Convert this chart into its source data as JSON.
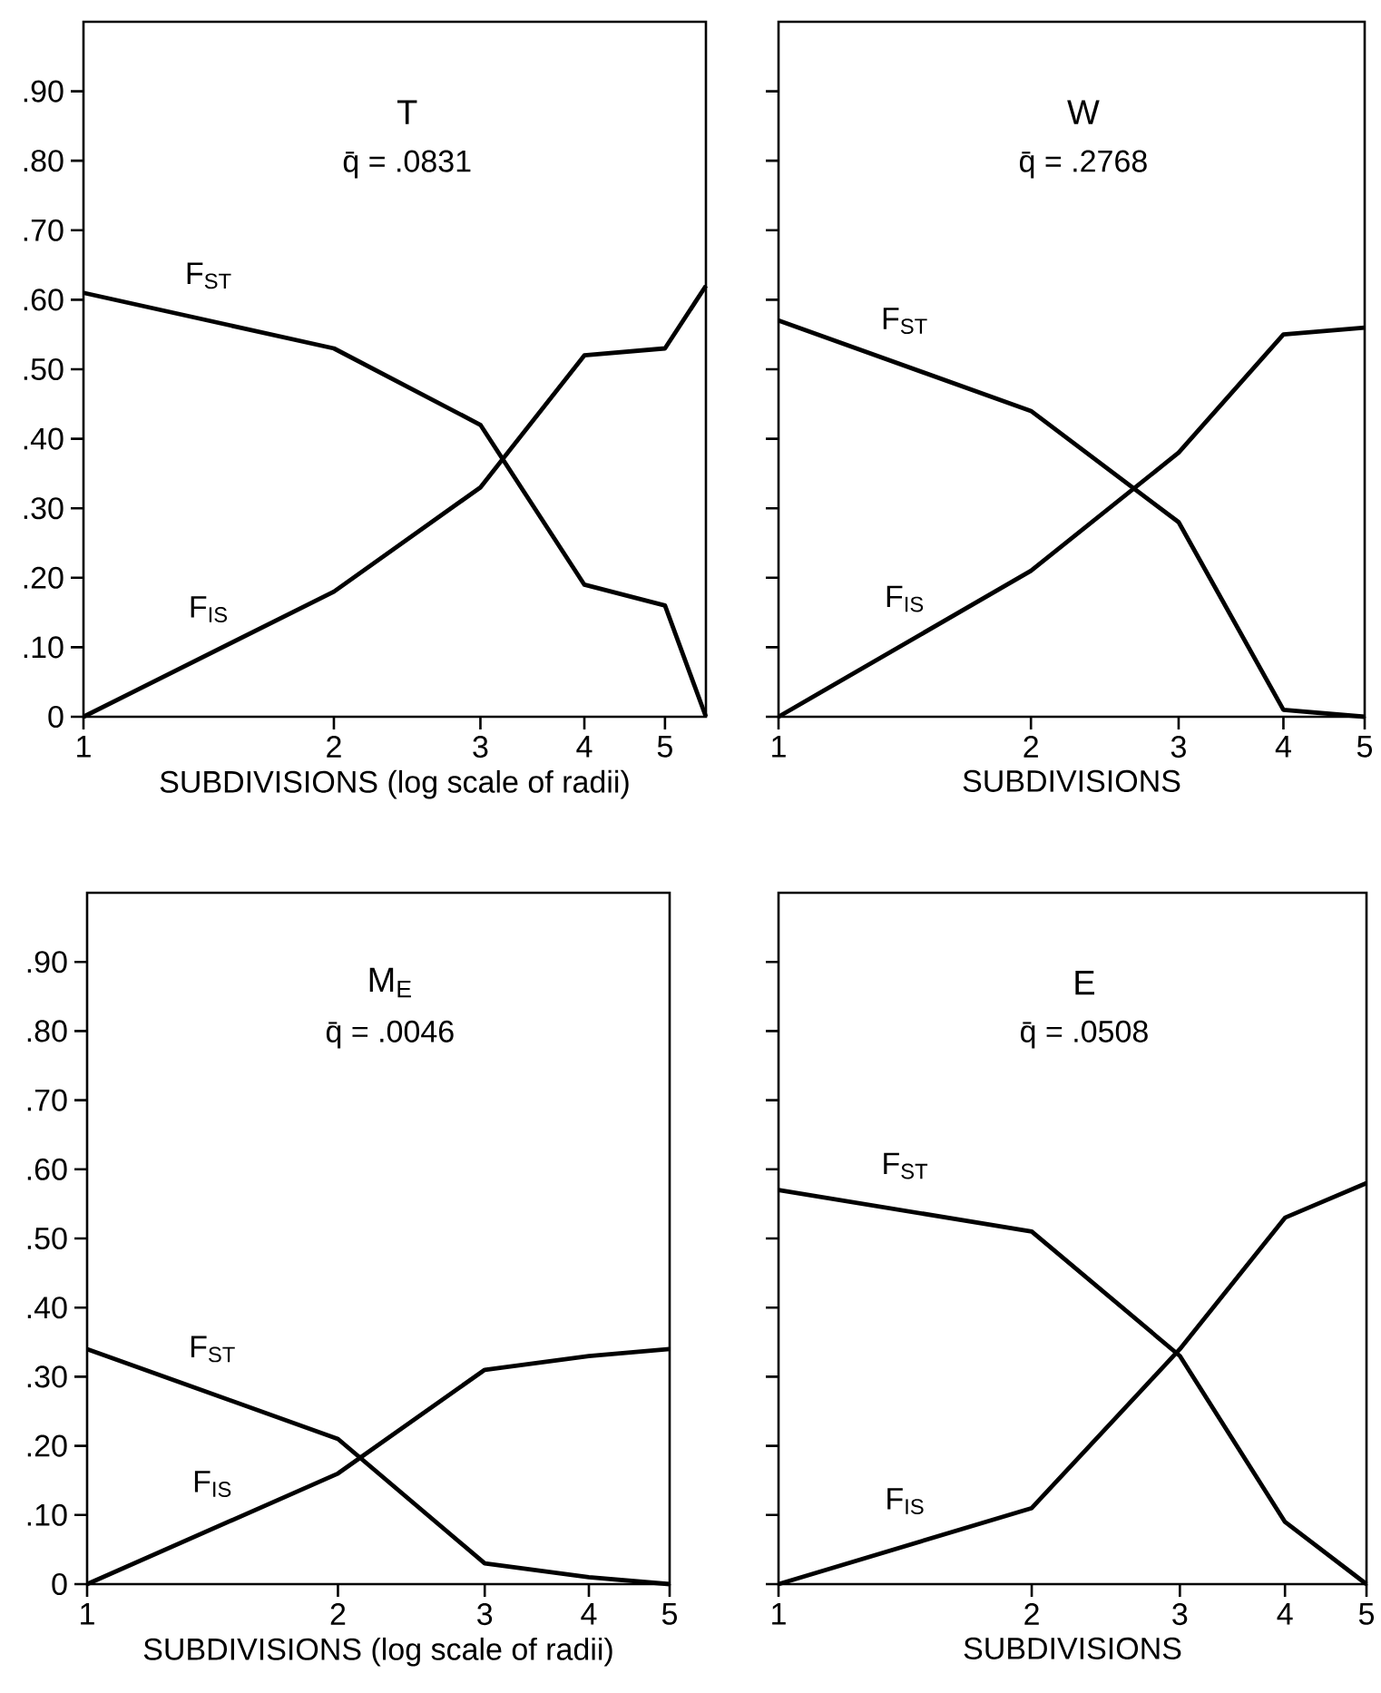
{
  "chart_data": [
    {
      "type": "line",
      "title": "T",
      "subtitle": "q̄ = .0831",
      "xlabel": "SUBDIVISIONS (log scale of radii)",
      "log": "x",
      "x": [
        1,
        2,
        3,
        4,
        5,
        5.6
      ],
      "xlim": [
        1,
        5.6
      ],
      "xticks": [
        1,
        2,
        3,
        4,
        5
      ],
      "ylim": [
        0,
        1.0
      ],
      "yticks": [
        {
          "value": 0,
          "label": "0"
        },
        {
          "value": 0.1,
          "label": ".10"
        },
        {
          "value": 0.2,
          "label": ".20"
        },
        {
          "value": 0.3,
          "label": ".30"
        },
        {
          "value": 0.4,
          "label": ".40"
        },
        {
          "value": 0.5,
          "label": ".50"
        },
        {
          "value": 0.6,
          "label": ".60"
        },
        {
          "value": 0.7,
          "label": ".70"
        },
        {
          "value": 0.8,
          "label": ".80"
        },
        {
          "value": 0.9,
          "label": ".90"
        }
      ],
      "series": [
        {
          "name": "F$_{ST}$",
          "color": "#000000",
          "values": [
            0.61,
            0.53,
            0.42,
            0.19,
            0.16,
            0
          ]
        },
        {
          "name": "F$_{IS}$",
          "color": "#000000",
          "values": [
            0,
            0.18,
            0.33,
            0.52,
            0.53,
            0.62
          ]
        }
      ]
    },
    {
      "type": "line",
      "title": "W",
      "subtitle": "q̄ = .2768",
      "xlabel": "SUBDIVISIONS",
      "log": "x",
      "x": [
        1,
        2,
        3,
        4,
        5
      ],
      "xlim": [
        1,
        5
      ],
      "xticks": [
        1,
        2,
        3,
        4,
        5
      ],
      "ylim": [
        0,
        1.0
      ],
      "tick_labels": "x",
      "yticks": [
        {
          "value": 0,
          "label": null
        },
        {
          "value": 0.1,
          "label": null
        },
        {
          "value": 0.2,
          "label": null
        },
        {
          "value": 0.3,
          "label": null
        },
        {
          "value": 0.4,
          "label": null
        },
        {
          "value": 0.5,
          "label": null
        },
        {
          "value": 0.6,
          "label": null
        },
        {
          "value": 0.7,
          "label": null
        },
        {
          "value": 0.8,
          "label": null
        },
        {
          "value": 0.9,
          "label": null
        }
      ],
      "series": [
        {
          "name": "F$_{ST}$",
          "color": "#000000",
          "values": [
            0.57,
            0.44,
            0.28,
            0.01,
            0
          ]
        },
        {
          "name": "F$_{IS}$",
          "color": "#000000",
          "values": [
            0,
            0.21,
            0.38,
            0.55,
            0.56
          ]
        }
      ]
    },
    {
      "type": "line",
      "title": "M$_{E}$",
      "subtitle": "q̄ = .0046",
      "xlabel": "SUBDIVISIONS (log scale of radii)",
      "log": "x",
      "x": [
        1,
        2,
        3,
        4,
        5
      ],
      "xlim": [
        1,
        5
      ],
      "xticks": [
        1,
        2,
        3,
        4,
        5
      ],
      "ylim": [
        0,
        1.0
      ],
      "yticks": [
        {
          "value": 0,
          "label": "0"
        },
        {
          "value": 0.1,
          "label": ".10"
        },
        {
          "value": 0.2,
          "label": ".20"
        },
        {
          "value": 0.3,
          "label": ".30"
        },
        {
          "value": 0.4,
          "label": ".40"
        },
        {
          "value": 0.5,
          "label": ".50"
        },
        {
          "value": 0.6,
          "label": ".60"
        },
        {
          "value": 0.7,
          "label": ".70"
        },
        {
          "value": 0.8,
          "label": ".80"
        },
        {
          "value": 0.9,
          "label": ".90"
        }
      ],
      "series": [
        {
          "name": "F$_{ST}$",
          "color": "#000000",
          "values": [
            0.34,
            0.21,
            0.03,
            0.01,
            0
          ]
        },
        {
          "name": "F$_{IS}$",
          "color": "#000000",
          "values": [
            0,
            0.16,
            0.31,
            0.33,
            0.34
          ]
        }
      ]
    },
    {
      "type": "line",
      "title": "E",
      "subtitle": "q̄ = .0508",
      "xlabel": "SUBDIVISIONS",
      "log": "x",
      "x": [
        1,
        2,
        3,
        4,
        5
      ],
      "xlim": [
        1,
        5
      ],
      "xticks": [
        1,
        2,
        3,
        4,
        5
      ],
      "ylim": [
        0,
        1.0
      ],
      "tick_labels": "x",
      "yticks": [
        {
          "value": 0,
          "label": null
        },
        {
          "value": 0.1,
          "label": null
        },
        {
          "value": 0.2,
          "label": null
        },
        {
          "value": 0.3,
          "label": null
        },
        {
          "value": 0.4,
          "label": null
        },
        {
          "value": 0.5,
          "label": null
        },
        {
          "value": 0.6,
          "label": null
        },
        {
          "value": 0.7,
          "label": null
        },
        {
          "value": 0.8,
          "label": null
        },
        {
          "value": 0.9,
          "label": null
        }
      ],
      "series": [
        {
          "name": "F$_{ST}$",
          "color": "#000000",
          "values": [
            0.57,
            0.51,
            0.33,
            0.09,
            0
          ]
        },
        {
          "name": "F$_{IS}$",
          "color": "#000000",
          "values": [
            0,
            0.11,
            0.34,
            0.53,
            0.58
          ]
        }
      ]
    }
  ]
}
